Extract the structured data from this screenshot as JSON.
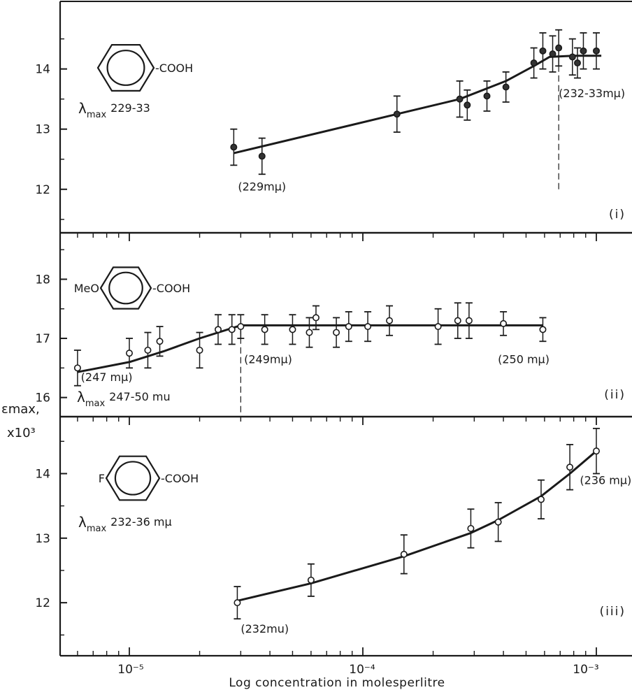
{
  "figure": {
    "xlabel": "Log concentration in molesperlitre",
    "ylabel": "εmax,",
    "ylabel_scale": "x10³",
    "x_tick_labels": [
      "10⁻⁵",
      "10⁻⁴",
      "10⁻³"
    ]
  },
  "chart_data": [
    {
      "type": "scatter",
      "panel": "(i)",
      "structure": {
        "substituent": "",
        "group": "COOH"
      },
      "lambda_label": "λmax",
      "lambda_value": "229-33",
      "x_scale": "log",
      "xlim": [
        5.5e-06,
        0.0012
      ],
      "ylim": [
        11.3,
        15.1
      ],
      "y_ticks": [
        12,
        13,
        14
      ],
      "y_tick_labels": [
        "12",
        "13",
        "14"
      ],
      "points": [
        {
          "x": 2.8e-05,
          "y": 12.7,
          "err": 0.3
        },
        {
          "x": 3.7e-05,
          "y": 12.55,
          "err": 0.3
        },
        {
          "x": 0.00014,
          "y": 13.25,
          "err": 0.3
        },
        {
          "x": 0.00026,
          "y": 13.5,
          "err": 0.3
        },
        {
          "x": 0.00028,
          "y": 13.4,
          "err": 0.25
        },
        {
          "x": 0.00034,
          "y": 13.55,
          "err": 0.25
        },
        {
          "x": 0.00041,
          "y": 13.7,
          "err": 0.25
        },
        {
          "x": 0.00054,
          "y": 14.1,
          "err": 0.25
        },
        {
          "x": 0.00059,
          "y": 14.3,
          "err": 0.3
        },
        {
          "x": 0.00065,
          "y": 14.25,
          "err": 0.3
        },
        {
          "x": 0.00069,
          "y": 14.35,
          "err": 0.3
        },
        {
          "x": 0.00079,
          "y": 14.2,
          "err": 0.3
        },
        {
          "x": 0.00083,
          "y": 14.1,
          "err": 0.25
        },
        {
          "x": 0.00088,
          "y": 14.3,
          "err": 0.3
        },
        {
          "x": 0.001,
          "y": 14.3,
          "err": 0.3
        }
      ],
      "curve": [
        [
          2.8e-05,
          12.6
        ],
        [
          0.00014,
          13.25
        ],
        [
          0.00026,
          13.5
        ],
        [
          0.00041,
          13.8
        ],
        [
          0.00054,
          14.05
        ],
        [
          0.00063,
          14.2
        ],
        [
          0.0008,
          14.22
        ],
        [
          0.00105,
          14.22
        ]
      ],
      "annotations": [
        {
          "text": "(229mμ)",
          "x": 3.7e-05,
          "y": 12.05,
          "anchor": "middle"
        },
        {
          "text": "(232-33mμ)",
          "x": 0.00069,
          "y": 13.6,
          "anchor": "start"
        }
      ],
      "marker_line": {
        "x": 0.00069,
        "y_from": 12.0,
        "y_to": 14.2
      }
    },
    {
      "type": "scatter",
      "panel": "(ii)",
      "structure": {
        "substituent": "MeO",
        "group": "COOH"
      },
      "lambda_label": "λmax",
      "lambda_value": "247-50 mu",
      "x_scale": "log",
      "xlim": [
        5.5e-06,
        0.0012
      ],
      "ylim": [
        15.7,
        18.75
      ],
      "y_ticks": [
        16,
        17,
        18
      ],
      "y_tick_labels": [
        "16",
        "17",
        "18"
      ],
      "points": [
        {
          "x": 6e-06,
          "y": 16.5,
          "err": 0.3
        },
        {
          "x": 1e-05,
          "y": 16.75,
          "err": 0.25
        },
        {
          "x": 1.2e-05,
          "y": 16.8,
          "err": 0.3
        },
        {
          "x": 1.35e-05,
          "y": 16.95,
          "err": 0.25
        },
        {
          "x": 2e-05,
          "y": 16.8,
          "err": 0.3
        },
        {
          "x": 2.4e-05,
          "y": 17.15,
          "err": 0.25
        },
        {
          "x": 2.75e-05,
          "y": 17.15,
          "err": 0.25
        },
        {
          "x": 3e-05,
          "y": 17.2,
          "err": 0.2
        },
        {
          "x": 3.8e-05,
          "y": 17.15,
          "err": 0.25
        },
        {
          "x": 5e-05,
          "y": 17.15,
          "err": 0.25
        },
        {
          "x": 5.9e-05,
          "y": 17.1,
          "err": 0.25
        },
        {
          "x": 6.3e-05,
          "y": 17.35,
          "err": 0.2
        },
        {
          "x": 7.7e-05,
          "y": 17.1,
          "err": 0.25
        },
        {
          "x": 8.7e-05,
          "y": 17.2,
          "err": 0.25
        },
        {
          "x": 0.000105,
          "y": 17.2,
          "err": 0.25
        },
        {
          "x": 0.00013,
          "y": 17.3,
          "err": 0.25
        },
        {
          "x": 0.00021,
          "y": 17.2,
          "err": 0.3
        },
        {
          "x": 0.000255,
          "y": 17.3,
          "err": 0.3
        },
        {
          "x": 0.000285,
          "y": 17.3,
          "err": 0.3
        },
        {
          "x": 0.0004,
          "y": 17.25,
          "err": 0.2
        },
        {
          "x": 0.00059,
          "y": 17.15,
          "err": 0.2
        }
      ],
      "curve": [
        [
          6e-06,
          16.43
        ],
        [
          1e-05,
          16.6
        ],
        [
          1.4e-05,
          16.78
        ],
        [
          2e-05,
          17.0
        ],
        [
          3e-05,
          17.22
        ],
        [
          0.00059,
          17.22
        ]
      ],
      "annotations": [
        {
          "text": "(247 mμ)",
          "x": 6.2e-06,
          "y": 16.35,
          "anchor": "start"
        },
        {
          "text": "(249mμ)",
          "x": 3.1e-05,
          "y": 16.65,
          "anchor": "start"
        },
        {
          "text": "(250 mμ)",
          "x": 0.00063,
          "y": 16.65,
          "anchor": "end"
        }
      ],
      "marker_line": {
        "x": 3e-05,
        "y_from": 15.75,
        "y_to": 17.2
      }
    },
    {
      "type": "scatter",
      "panel": "(iii)",
      "structure": {
        "substituent": "F",
        "group": "COOH"
      },
      "lambda_label": "λmax",
      "lambda_value": "232-36 mμ",
      "x_scale": "log",
      "xlim": [
        5.5e-06,
        0.0012
      ],
      "ylim": [
        11.2,
        14.85
      ],
      "y_ticks": [
        12,
        13,
        14
      ],
      "y_tick_labels": [
        "12",
        "13",
        "14"
      ],
      "points": [
        {
          "x": 2.9e-05,
          "y": 12.0,
          "err": 0.25
        },
        {
          "x": 6e-05,
          "y": 12.35,
          "err": 0.25
        },
        {
          "x": 0.00015,
          "y": 12.75,
          "err": 0.3
        },
        {
          "x": 0.00029,
          "y": 13.15,
          "err": 0.3
        },
        {
          "x": 0.00038,
          "y": 13.25,
          "err": 0.3
        },
        {
          "x": 0.00058,
          "y": 13.6,
          "err": 0.3
        },
        {
          "x": 0.00077,
          "y": 14.1,
          "err": 0.35
        },
        {
          "x": 0.001,
          "y": 14.35,
          "err": 0.35
        }
      ],
      "curve": [
        [
          2.9e-05,
          12.03
        ],
        [
          6e-05,
          12.3
        ],
        [
          0.00015,
          12.72
        ],
        [
          0.00029,
          13.08
        ],
        [
          0.00038,
          13.28
        ],
        [
          0.00058,
          13.65
        ],
        [
          0.00077,
          14.0
        ],
        [
          0.001,
          14.35
        ]
      ],
      "annotations": [
        {
          "text": "(232mu)",
          "x": 3e-05,
          "y": 11.6,
          "anchor": "start"
        },
        {
          "text": "(236 mμ)",
          "x": 0.00085,
          "y": 13.9,
          "anchor": "start"
        }
      ]
    }
  ]
}
